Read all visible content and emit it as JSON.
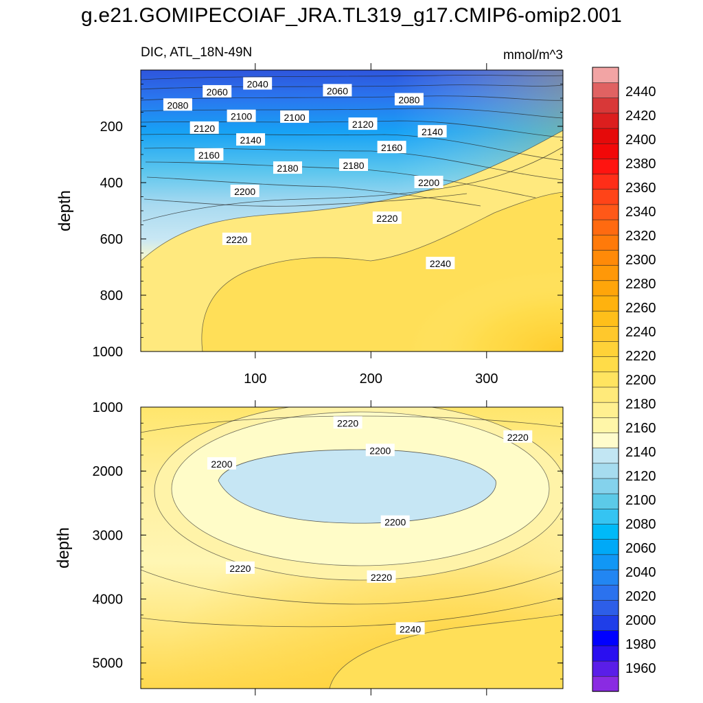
{
  "title": "g.e21.GOMIPECOIAF_JRA.TL319_g17.CMIP6-omip2.001",
  "subtitle_left": "DIC, ATL_18N-49N",
  "subtitle_right": "mmol/m^3",
  "chart_data": {
    "type": "heatmap",
    "plot": "depth-time contour (Hovmoller)",
    "variable": "DIC",
    "region": "ATL_18N-49N",
    "units": "mmol/m^3",
    "ylabel": "depth",
    "x_range": [
      1,
      366
    ],
    "x_ticks": [
      100,
      200,
      300
    ],
    "panels": [
      {
        "name": "upper",
        "ylim": [
          0,
          1000
        ],
        "y_reversed": true,
        "y_ticks": [
          200,
          400,
          600,
          800,
          1000
        ],
        "x_tick_labels_shown": true,
        "contour_labels": [
          {
            "value": "2040",
            "x": 102,
            "y": 50
          },
          {
            "value": "2060",
            "x": 67,
            "y": 78
          },
          {
            "value": "2060",
            "x": 171,
            "y": 74
          },
          {
            "value": "2080",
            "x": 33,
            "y": 125
          },
          {
            "value": "2080",
            "x": 233,
            "y": 106
          },
          {
            "value": "2100",
            "x": 88,
            "y": 165
          },
          {
            "value": "2100",
            "x": 134,
            "y": 168
          },
          {
            "value": "2120",
            "x": 56,
            "y": 207
          },
          {
            "value": "2120",
            "x": 193,
            "y": 193
          },
          {
            "value": "2140",
            "x": 96,
            "y": 249
          },
          {
            "value": "2140",
            "x": 253,
            "y": 220
          },
          {
            "value": "2160",
            "x": 60,
            "y": 302
          },
          {
            "value": "2160",
            "x": 218,
            "y": 276
          },
          {
            "value": "2180",
            "x": 128,
            "y": 349
          },
          {
            "value": "2180",
            "x": 185,
            "y": 339
          },
          {
            "value": "2200",
            "x": 91,
            "y": 432
          },
          {
            "value": "2200",
            "x": 250,
            "y": 400
          },
          {
            "value": "2220",
            "x": 84,
            "y": 602
          },
          {
            "value": "2220",
            "x": 214,
            "y": 527
          },
          {
            "value": "2240",
            "x": 260,
            "y": 688
          }
        ]
      },
      {
        "name": "lower",
        "ylim": [
          1000,
          5400
        ],
        "y_reversed": true,
        "y_ticks": [
          1000,
          2000,
          3000,
          4000,
          5000
        ],
        "x_tick_labels_shown": false,
        "contour_labels": [
          {
            "value": "2220",
            "x": 180,
            "y": 1250
          },
          {
            "value": "2220",
            "x": 327,
            "y": 1470
          },
          {
            "value": "2200",
            "x": 71,
            "y": 1890
          },
          {
            "value": "2200",
            "x": 208,
            "y": 1680
          },
          {
            "value": "2200",
            "x": 221,
            "y": 2800
          },
          {
            "value": "2220",
            "x": 87,
            "y": 3520
          },
          {
            "value": "2220",
            "x": 209,
            "y": 3660
          },
          {
            "value": "2240",
            "x": 234,
            "y": 4470
          }
        ]
      }
    ],
    "colorbar": {
      "labels": [
        "1960",
        "1980",
        "2000",
        "2020",
        "2040",
        "2060",
        "2080",
        "2100",
        "2120",
        "2140",
        "2160",
        "2180",
        "2200",
        "2220",
        "2240",
        "2260",
        "2280",
        "2300",
        "2320",
        "2340",
        "2360",
        "2380",
        "2400",
        "2420",
        "2440"
      ],
      "colors": [
        "#8a2be2",
        "#5a1ee8",
        "#2a0ff0",
        "#0000ff",
        "#1f3ee8",
        "#2d5ee8",
        "#2b72ee",
        "#2286f2",
        "#1197f5",
        "#00a9f7",
        "#00baf8",
        "#35c4f2",
        "#5ccae8",
        "#84d2ec",
        "#a6dcef",
        "#c2e6f3",
        "#fffccc",
        "#fff6a8",
        "#fff090",
        "#ffea7a",
        "#ffe460",
        "#ffdc48",
        "#ffd238",
        "#ffc82c",
        "#ffbf1a",
        "#ffb20e",
        "#ffa50a",
        "#ff9808",
        "#ff8a08",
        "#ff7a0a",
        "#ff6a10",
        "#ff5818",
        "#ff4418",
        "#ff2e18",
        "#ff1410",
        "#f20808",
        "#e50a0a",
        "#dc1e1e",
        "#d83838",
        "#e06262",
        "#f2a4a4"
      ]
    }
  }
}
